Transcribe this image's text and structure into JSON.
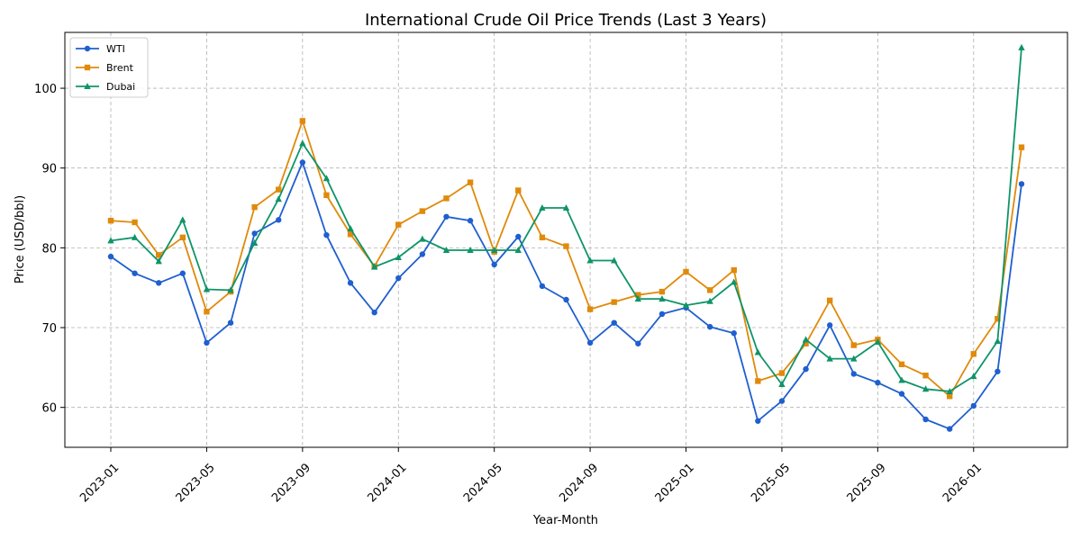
{
  "chart_data": {
    "type": "line",
    "title": "International Crude Oil Price Trends (Last 3 Years)",
    "xlabel": "Year-Month",
    "ylabel": "Price (USD/bbl)",
    "ylim": [
      55,
      107
    ],
    "yticks": [
      60,
      70,
      80,
      90,
      100
    ],
    "x_tick_labels": [
      "2023-01",
      "2023-05",
      "2023-09",
      "2024-01",
      "2024-05",
      "2024-09",
      "2025-01",
      "2025-05",
      "2025-09",
      "2026-01"
    ],
    "x_tick_indices": [
      0,
      4,
      8,
      12,
      16,
      20,
      24,
      28,
      32,
      36
    ],
    "x": [
      "2023-01",
      "2023-02",
      "2023-03",
      "2023-04",
      "2023-05",
      "2023-06",
      "2023-07",
      "2023-08",
      "2023-09",
      "2023-10",
      "2023-11",
      "2023-12",
      "2024-01",
      "2024-02",
      "2024-03",
      "2024-04",
      "2024-05",
      "2024-06",
      "2024-07",
      "2024-08",
      "2024-09",
      "2024-10",
      "2024-11",
      "2024-12",
      "2025-01",
      "2025-02",
      "2025-03",
      "2025-04",
      "2025-05",
      "2025-06",
      "2025-07",
      "2025-08",
      "2025-09",
      "2025-10",
      "2025-11",
      "2025-12",
      "2026-01",
      "2026-02",
      "2026-03"
    ],
    "grid": true,
    "legend_position": "top-left",
    "series": [
      {
        "name": "WTI",
        "color": "#1f5fcf",
        "marker": "circle",
        "values": [
          78.9,
          76.8,
          75.6,
          76.8,
          68.1,
          70.6,
          81.8,
          83.5,
          90.7,
          81.6,
          75.6,
          71.9,
          76.2,
          79.2,
          83.9,
          83.4,
          77.9,
          81.4,
          75.2,
          73.5,
          68.1,
          70.6,
          68.0,
          71.7,
          72.5,
          70.1,
          69.3,
          58.3,
          60.8,
          64.8,
          70.3,
          64.2,
          63.1,
          61.7,
          58.5,
          57.3,
          60.2,
          64.5,
          88.0
        ]
      },
      {
        "name": "Brent",
        "color": "#e08a0b",
        "marker": "square",
        "values": [
          83.4,
          83.2,
          79.1,
          81.3,
          72.0,
          74.5,
          85.1,
          87.3,
          95.9,
          86.6,
          81.7,
          77.7,
          82.9,
          84.6,
          86.2,
          88.2,
          79.5,
          87.2,
          81.3,
          80.2,
          72.3,
          73.2,
          74.1,
          74.5,
          77.0,
          74.7,
          77.2,
          63.3,
          64.3,
          68.0,
          73.4,
          67.8,
          68.5,
          65.4,
          64.0,
          61.4,
          66.7,
          71.1,
          92.6
        ]
      },
      {
        "name": "Dubai",
        "color": "#0f9468",
        "marker": "triangle",
        "values": [
          80.9,
          81.3,
          78.3,
          83.5,
          74.8,
          74.7,
          80.6,
          86.1,
          93.1,
          88.7,
          82.4,
          77.6,
          78.8,
          81.1,
          79.7,
          79.7,
          79.7,
          79.7,
          85.0,
          85.0,
          78.4,
          78.4,
          73.6,
          73.6,
          72.8,
          73.3,
          75.7,
          66.9,
          62.9,
          68.5,
          66.1,
          66.1,
          68.2,
          63.4,
          62.3,
          62.0,
          63.9,
          68.3,
          105.1
        ]
      }
    ]
  }
}
